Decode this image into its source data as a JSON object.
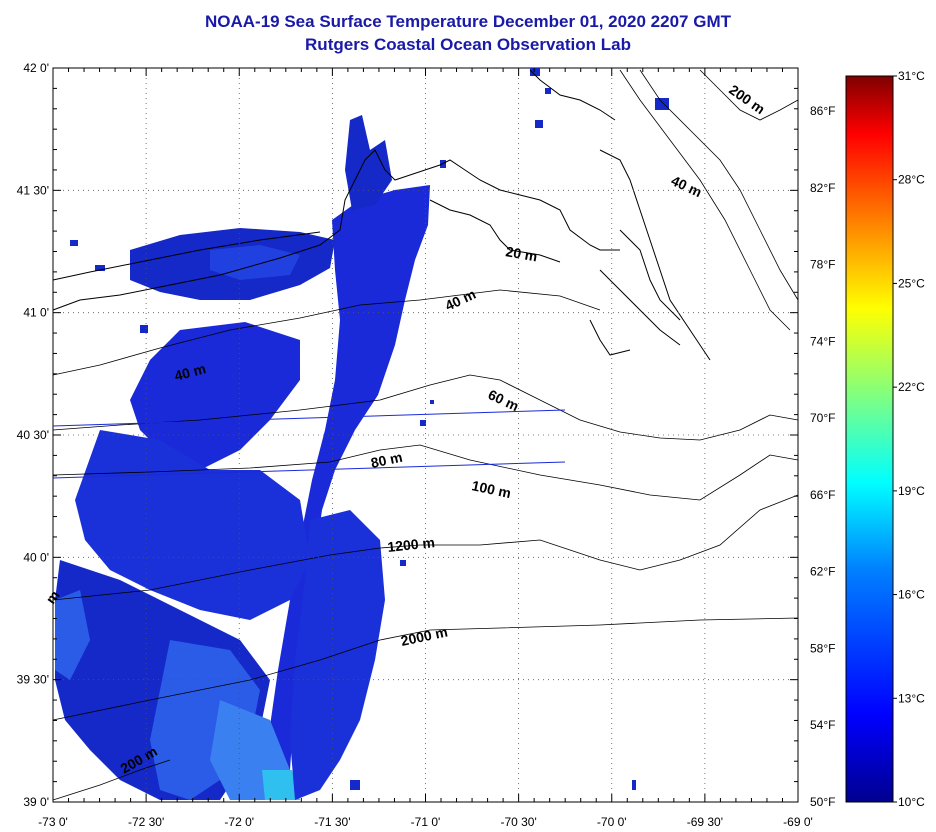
{
  "title": "NOAA-19 Sea Surface Temperature December 01, 2020 2207 GMT",
  "subtitle": "Rutgers Coastal Ocean Observation Lab",
  "map": {
    "lat_labels": [
      "42 0'",
      "41 30'",
      "41 0'",
      "40 30'",
      "40 0'",
      "39 30'",
      "39 0'"
    ],
    "lon_labels": [
      "-73 0'",
      "-72 30'",
      "-72 0'",
      "-71 30'",
      "-71 0'",
      "-70 30'",
      "-70 0'",
      "-69 30'",
      "-69 0'"
    ],
    "f_labels": [
      "86°F",
      "82°F",
      "78°F",
      "74°F",
      "70°F",
      "66°F",
      "62°F",
      "58°F",
      "54°F",
      "50°F"
    ],
    "contour_labels": [
      {
        "text": "200 m"
      },
      {
        "text": "40 m"
      },
      {
        "text": "20 m"
      },
      {
        "text": "40 m"
      },
      {
        "text": "60 m"
      },
      {
        "text": "40 m"
      },
      {
        "text": "80 m"
      },
      {
        "text": "100 m"
      },
      {
        "text": "1200 m"
      },
      {
        "text": "2000 m"
      },
      {
        "text": "200 m"
      },
      {
        "text": "m"
      }
    ]
  },
  "colorbar": {
    "labels": [
      "31°C",
      "28°C",
      "25°C",
      "22°C",
      "19°C",
      "16°C",
      "13°C",
      "10°C"
    ],
    "colors": [
      "#00008f",
      "#0000ff",
      "#0080ff",
      "#00ffff",
      "#80ff80",
      "#ffff00",
      "#ff8000",
      "#ff0000",
      "#800000"
    ]
  }
}
